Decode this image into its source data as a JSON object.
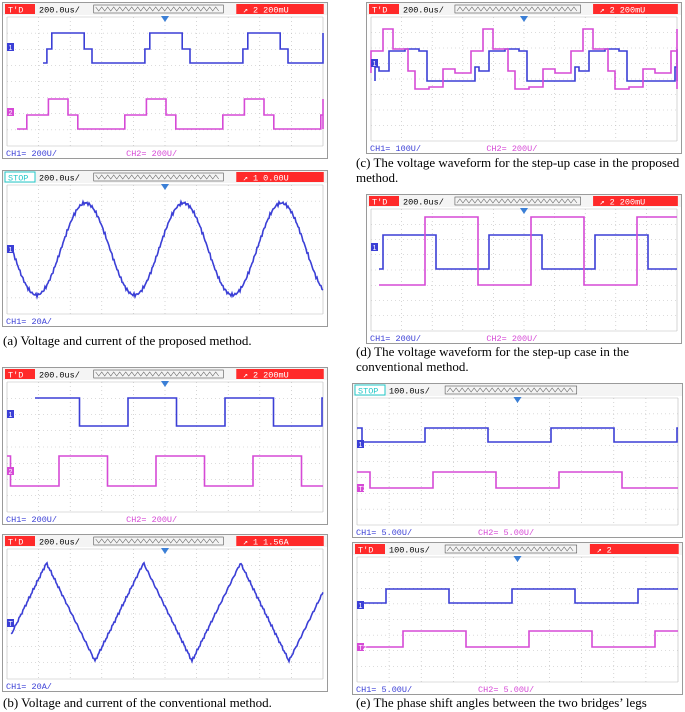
{
  "colors": {
    "ch1": "#3b3fd6",
    "ch2": "#d64ad6",
    "header_bg": "#ff2a2a",
    "stop": "#22c8c8",
    "grid": "#b9b9b9"
  },
  "captions": {
    "a": "(a) Voltage and current of the proposed method.",
    "b": "(b) Voltage and current of the conventional method.",
    "c": "(c) The voltage waveform for the step-up case in the proposed method.",
    "d": "(d) The voltage waveform for the step-up case in the conventional method.",
    "e": "(e) The phase shift angles between the two bridges’ legs"
  },
  "scopes": [
    {
      "id": "a1",
      "status": "T'D",
      "time": "200.0us/",
      "trig_ch": "2",
      "trig_level": "200mU",
      "ch1_scale": "CH1= 200U/",
      "ch2_scale": "CH2= 200U/"
    },
    {
      "id": "a2",
      "status": "STOP",
      "time": "200.0us/",
      "trig_ch": "1",
      "trig_level": "0.00U",
      "ch1_scale": "CH1= 20A/",
      "ch2_scale": ""
    },
    {
      "id": "b1",
      "status": "T'D",
      "time": "200.0us/",
      "trig_ch": "2",
      "trig_level": "200mU",
      "ch1_scale": "CH1= 200U/",
      "ch2_scale": "CH2= 200U/"
    },
    {
      "id": "b2",
      "status": "T'D",
      "time": "200.0us/",
      "trig_ch": "1",
      "trig_level": "1.56A",
      "ch1_scale": "CH1= 20A/",
      "ch2_scale": ""
    },
    {
      "id": "c",
      "status": "T'D",
      "time": "200.0us/",
      "trig_ch": "2",
      "trig_level": "200mU",
      "ch1_scale": "CH1= 100U/",
      "ch2_scale": "CH2= 200U/"
    },
    {
      "id": "d",
      "status": "T'D",
      "time": "200.0us/",
      "trig_ch": "2",
      "trig_level": "200mU",
      "ch1_scale": "CH1= 200U/",
      "ch2_scale": "CH2= 200U/"
    },
    {
      "id": "e1",
      "status": "STOP",
      "time": "100.0us/",
      "trig_ch": "",
      "trig_level": "",
      "ch1_scale": "CH1= 5.00U/",
      "ch2_scale": "CH2= 5.00U/"
    },
    {
      "id": "e2",
      "status": "T'D",
      "time": "100.0us/",
      "trig_ch": "2",
      "trig_level": "",
      "ch1_scale": "CH1= 5.00U/",
      "ch2_scale": "CH2= 5.00U/"
    }
  ]
}
